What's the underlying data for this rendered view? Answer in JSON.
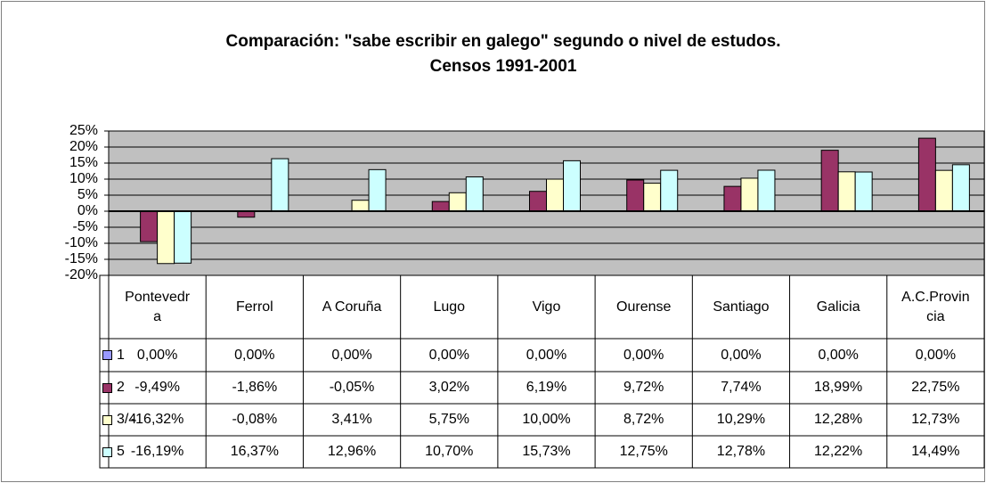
{
  "chart_data": {
    "type": "bar",
    "title": [
      "Comparación: \"sabe escribir en galego\" segundo o nivel de estudos.",
      "Censos 1991-2001"
    ],
    "categories": [
      "Pontevedra",
      "Ferrol",
      "A Coruña",
      "Lugo",
      "Vigo",
      "Ourense",
      "Santiago",
      "Galicia",
      "A.C.Provincia"
    ],
    "series": [
      {
        "name": "1",
        "color": "#9999ff",
        "values": [
          0,
          0,
          0,
          0,
          0,
          0,
          0,
          0,
          0
        ],
        "value_labels": [
          "0,00%",
          "0,00%",
          "0,00%",
          "0,00%",
          "0,00%",
          "0,00%",
          "0,00%",
          "0,00%",
          "0,00%"
        ]
      },
      {
        "name": "2",
        "color": "#993366",
        "values": [
          -9.49,
          -1.86,
          -0.05,
          3.02,
          6.19,
          9.72,
          7.74,
          18.99,
          22.75
        ],
        "value_labels": [
          "-9,49%",
          "-1,86%",
          "-0,05%",
          "3,02%",
          "6,19%",
          "9,72%",
          "7,74%",
          "18,99%",
          "22,75%"
        ]
      },
      {
        "name": "3/4",
        "color": "#ffffcc",
        "values": [
          -16.32,
          -0.08,
          3.41,
          5.75,
          10.0,
          8.72,
          10.29,
          12.28,
          12.73
        ],
        "value_labels": [
          "-16,32%",
          "-0,08%",
          "3,41%",
          "5,75%",
          "10,00%",
          "8,72%",
          "10,29%",
          "12,28%",
          "12,73%"
        ]
      },
      {
        "name": "5",
        "color": "#ccffff",
        "values": [
          -16.19,
          16.37,
          12.96,
          10.7,
          15.73,
          12.75,
          12.78,
          12.22,
          14.49
        ],
        "value_labels": [
          "-16,19%",
          "16,37%",
          "12,96%",
          "10,70%",
          "15,73%",
          "12,75%",
          "12,78%",
          "12,22%",
          "14,49%"
        ]
      }
    ],
    "ylim": [
      -20,
      25
    ],
    "yticks": [
      {
        "value": -20,
        "label": "-20%"
      },
      {
        "value": -15,
        "label": "-15%"
      },
      {
        "value": -10,
        "label": "-10%"
      },
      {
        "value": -5,
        "label": "-5%"
      },
      {
        "value": 0,
        "label": "0%"
      },
      {
        "value": 5,
        "label": "5%"
      },
      {
        "value": 10,
        "label": "10%"
      },
      {
        "value": 15,
        "label": "15%"
      },
      {
        "value": 20,
        "label": "20%"
      },
      {
        "value": 25,
        "label": "25%"
      }
    ],
    "grid": true,
    "plot_background": "#c0c0c0"
  }
}
